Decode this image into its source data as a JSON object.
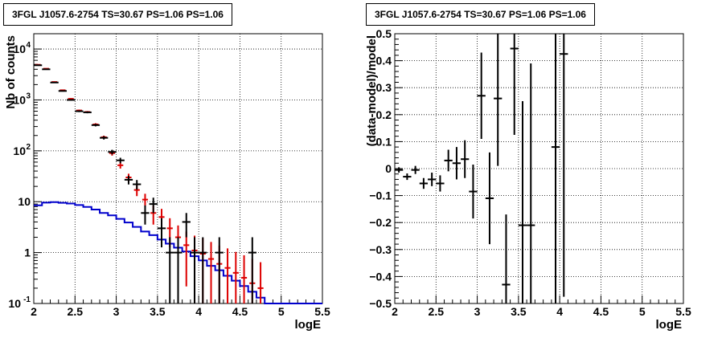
{
  "chart_data": [
    {
      "type": "histogram",
      "title": "3FGL J1057.6-2754 TS=30.67 PS=1.06 PS=1.06",
      "xlabel": "logE",
      "ylabel": "Nb of counts",
      "xlim": [
        2,
        5.5
      ],
      "ylim": [
        0.1,
        20000
      ],
      "yscale": "log",
      "grid": true,
      "x_ticks": [
        "2",
        "2.5",
        "3",
        "3.5",
        "4",
        "4.5",
        "5",
        "5.5"
      ],
      "y_ticks": [
        {
          "label": "10",
          "sup": "-1",
          "value": 0.1
        },
        {
          "label": "1",
          "sup": "",
          "value": 1
        },
        {
          "label": "10",
          "sup": "",
          "value": 10
        },
        {
          "label": "10",
          "sup": "2",
          "value": 100
        },
        {
          "label": "10",
          "sup": "3",
          "value": 1000
        },
        {
          "label": "10",
          "sup": "4",
          "value": 10000
        }
      ],
      "bin_width": 0.1,
      "series": [
        {
          "role": "data",
          "color": "#000000",
          "points": [
            {
              "x": 2.05,
              "y": 4800
            },
            {
              "x": 2.15,
              "y": 4000
            },
            {
              "x": 2.25,
              "y": 2200
            },
            {
              "x": 2.35,
              "y": 1500
            },
            {
              "x": 2.45,
              "y": 1000
            },
            {
              "x": 2.55,
              "y": 600
            },
            {
              "x": 2.65,
              "y": 570
            },
            {
              "x": 2.75,
              "y": 320
            },
            {
              "x": 2.85,
              "y": 180
            },
            {
              "x": 2.95,
              "y": 95
            },
            {
              "x": 3.05,
              "y": 65
            },
            {
              "x": 3.15,
              "y": 27
            },
            {
              "x": 3.25,
              "y": 22
            },
            {
              "x": 3.35,
              "y": 6
            },
            {
              "x": 3.45,
              "y": 9
            },
            {
              "x": 3.55,
              "y": 3
            },
            {
              "x": 3.65,
              "y": 1
            },
            {
              "x": 3.75,
              "y": 1
            },
            {
              "x": 3.85,
              "y": 4
            },
            {
              "x": 3.95,
              "y": 1
            },
            {
              "x": 4.05,
              "y": 1
            },
            {
              "x": 4.25,
              "y": 1
            },
            {
              "x": 4.65,
              "y": 1
            }
          ]
        },
        {
          "role": "model",
          "color": "#dd0000",
          "points": [
            {
              "x": 2.05,
              "y": 4900
            },
            {
              "x": 2.15,
              "y": 4100
            },
            {
              "x": 2.25,
              "y": 2250
            },
            {
              "x": 2.35,
              "y": 1550
            },
            {
              "x": 2.45,
              "y": 1050
            },
            {
              "x": 2.55,
              "y": 620
            },
            {
              "x": 2.65,
              "y": 580
            },
            {
              "x": 2.75,
              "y": 330
            },
            {
              "x": 2.85,
              "y": 185
            },
            {
              "x": 2.95,
              "y": 90
            },
            {
              "x": 3.05,
              "y": 52
            },
            {
              "x": 3.15,
              "y": 30
            },
            {
              "x": 3.25,
              "y": 17
            },
            {
              "x": 3.35,
              "y": 11
            },
            {
              "x": 3.45,
              "y": 6
            },
            {
              "x": 3.55,
              "y": 5
            },
            {
              "x": 3.65,
              "y": 3
            },
            {
              "x": 3.75,
              "y": 2
            },
            {
              "x": 3.85,
              "y": 1.4
            },
            {
              "x": 3.95,
              "y": 1.1
            },
            {
              "x": 4.05,
              "y": 0.95
            },
            {
              "x": 4.15,
              "y": 0.75
            },
            {
              "x": 4.25,
              "y": 0.6
            },
            {
              "x": 4.35,
              "y": 0.5
            },
            {
              "x": 4.45,
              "y": 0.4
            },
            {
              "x": 4.55,
              "y": 0.32
            },
            {
              "x": 4.65,
              "y": 0.25
            },
            {
              "x": 4.75,
              "y": 0.2
            }
          ]
        },
        {
          "role": "background",
          "color": "#0000cc",
          "x_edges": [
            2.0,
            2.1,
            2.2,
            2.3,
            2.4,
            2.5,
            2.6,
            2.7,
            2.8,
            2.9,
            3.0,
            3.1,
            3.2,
            3.3,
            3.4,
            3.5,
            3.6,
            3.7,
            3.8,
            3.9,
            4.0,
            4.1,
            4.2,
            4.3,
            4.4,
            4.5,
            4.6,
            4.7,
            4.8,
            5.5
          ],
          "values": [
            8.5,
            9.6,
            9.8,
            9.5,
            9.2,
            8.6,
            7.9,
            7.0,
            6.0,
            5.4,
            4.6,
            3.9,
            3.2,
            2.6,
            2.2,
            1.8,
            1.5,
            1.25,
            1.05,
            0.85,
            0.7,
            0.55,
            0.45,
            0.35,
            0.28,
            0.22,
            0.17,
            0.13,
            0.1
          ]
        }
      ]
    },
    {
      "type": "scatter",
      "title": "3FGL J1057.6-2754 TS=30.67 PS=1.06 PS=1.06",
      "xlabel": "logE",
      "ylabel": "(data-model)/model",
      "xlim": [
        2,
        5.5
      ],
      "ylim": [
        -0.5,
        0.5
      ],
      "grid": true,
      "x_ticks": [
        "2",
        "2.5",
        "3",
        "3.5",
        "4",
        "4.5",
        "5",
        "5.5"
      ],
      "y_ticks": [
        "−0.5",
        "−0.4",
        "−0.3",
        "−0.2",
        "−0.1",
        "0",
        "0.1",
        "0.2",
        "0.3",
        "0.4",
        "0.5"
      ],
      "bin_width": 0.1,
      "points": [
        {
          "x": 2.05,
          "y": -0.005,
          "err": 0.01
        },
        {
          "x": 2.15,
          "y": -0.03,
          "err": 0.012
        },
        {
          "x": 2.25,
          "y": -0.005,
          "err": 0.015
        },
        {
          "x": 2.35,
          "y": -0.055,
          "err": 0.02
        },
        {
          "x": 2.45,
          "y": -0.04,
          "err": 0.025
        },
        {
          "x": 2.55,
          "y": -0.055,
          "err": 0.03
        },
        {
          "x": 2.65,
          "y": 0.03,
          "err": 0.04
        },
        {
          "x": 2.75,
          "y": 0.02,
          "err": 0.06
        },
        {
          "x": 2.85,
          "y": 0.035,
          "err": 0.07
        },
        {
          "x": 2.95,
          "y": -0.085,
          "err": 0.1
        },
        {
          "x": 3.05,
          "y": 0.27,
          "err": 0.16
        },
        {
          "x": 3.15,
          "y": -0.11,
          "err": 0.17
        },
        {
          "x": 3.25,
          "y": 0.26,
          "err": 0.25
        },
        {
          "x": 3.35,
          "y": -0.43,
          "err": 0.26
        },
        {
          "x": 3.45,
          "y": 0.445,
          "err": 0.32
        },
        {
          "x": 3.55,
          "y": -0.21,
          "err": 0.46
        },
        {
          "x": 3.65,
          "y": -0.21,
          "err": 0.6
        },
        {
          "x": 3.95,
          "y": 0.08,
          "err": 0.9
        },
        {
          "x": 4.05,
          "y": 0.425,
          "err": 0.9
        }
      ]
    }
  ]
}
